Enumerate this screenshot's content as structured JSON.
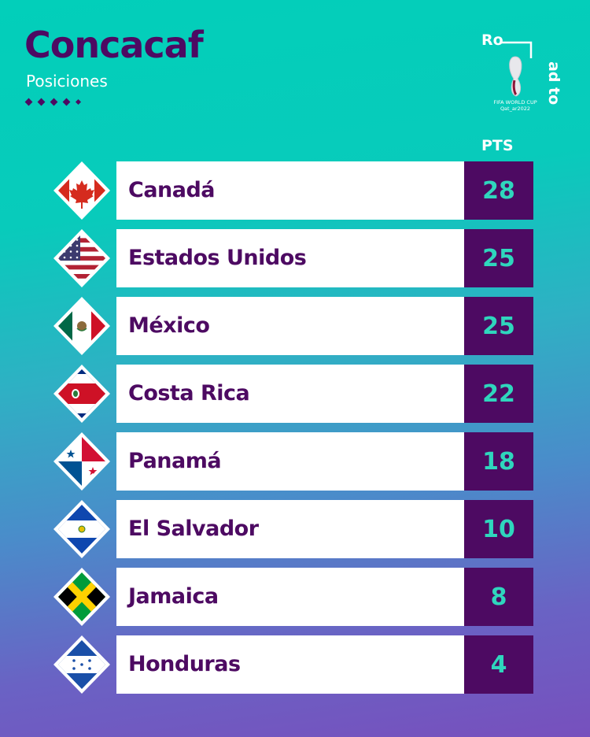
{
  "header": {
    "title": "Concacaf",
    "subtitle": "Posiciones",
    "pts_label": "PTS"
  },
  "logo": {
    "text_top": "Ro",
    "text_side": "ad to",
    "caption_1": "FIFA WORLD CUP",
    "caption_2": "Qat_ar2022"
  },
  "colors": {
    "purple": "#4d0a62",
    "teal": "#2fd6bd",
    "white": "#ffffff"
  },
  "standings": [
    {
      "team": "Canadá",
      "pts": "28",
      "flag": "canada"
    },
    {
      "team": "Estados Unidos",
      "pts": "25",
      "flag": "usa"
    },
    {
      "team": "México",
      "pts": "25",
      "flag": "mexico"
    },
    {
      "team": "Costa Rica",
      "pts": "22",
      "flag": "costa-rica"
    },
    {
      "team": "Panamá",
      "pts": "18",
      "flag": "panama"
    },
    {
      "team": "El Salvador",
      "pts": "10",
      "flag": "el-salvador"
    },
    {
      "team": "Jamaica",
      "pts": "8",
      "flag": "jamaica"
    },
    {
      "team": "Honduras",
      "pts": "4",
      "flag": "honduras"
    }
  ]
}
